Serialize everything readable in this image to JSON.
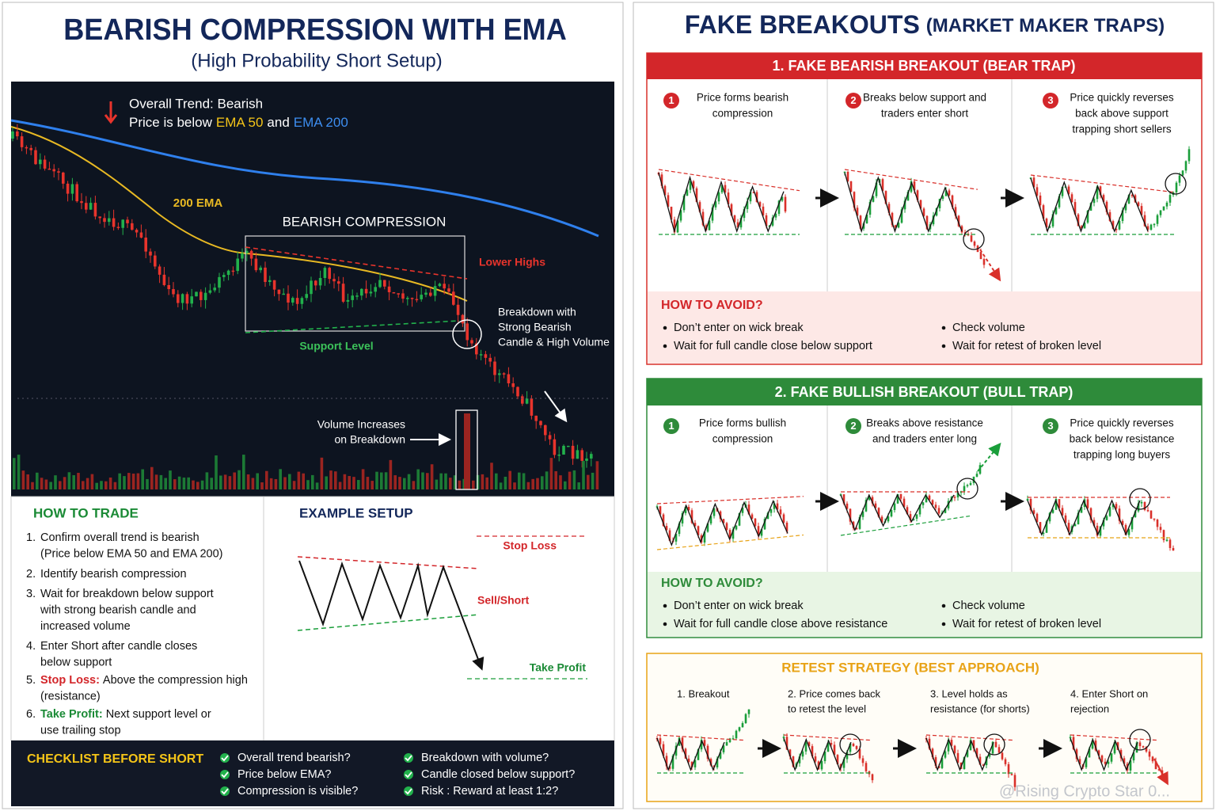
{
  "left": {
    "title": "BEARISH COMPRESSION WITH EMA",
    "subtitle": "(High Probability Short Setup)",
    "chart": {
      "trend": "Overall Trend: Bearish",
      "price_prefix": "Price is below",
      "ema50": "EMA 50",
      "conj": "and",
      "ema200": "EMA 200",
      "ema_label": "200 EMA",
      "zone": "BEARISH COMPRESSION",
      "lower_highs": "Lower Highs",
      "support": "Support Level",
      "breakdown": [
        "Breakdown with",
        "Strong Bearish",
        "Candle & High Volume"
      ],
      "volume": [
        "Volume Increases",
        "on Breakdown"
      ]
    },
    "how_to_trade": {
      "title": "HOW TO TRADE",
      "steps": [
        {
          "number": "1.",
          "lines": [
            "Confirm overall trend is bearish",
            "(Price below EMA 50 and EMA 200)"
          ]
        },
        {
          "number": "2.",
          "lines": [
            "Identify bearish compression"
          ]
        },
        {
          "number": "3.",
          "lines": [
            "Wait for breakdown below support",
            "with strong bearish candle and",
            "increased volume"
          ]
        },
        {
          "number": "4.",
          "lines": [
            "Enter Short after candle closes",
            "below support"
          ]
        },
        {
          "number": "5.",
          "lead": "Stop Loss:",
          "lines": [
            "Above the compression high",
            "(resistance)"
          ]
        },
        {
          "number": "6.",
          "lead": "Take Profit:",
          "lines": [
            "Next support level or",
            "use trailing stop"
          ]
        }
      ]
    },
    "example": {
      "title": "EXAMPLE SETUP",
      "stop_loss": "Stop Loss",
      "sell_short": "Sell/Short",
      "take_profit": "Take Profit"
    },
    "checklist": {
      "title": "CHECKLIST BEFORE SHORT",
      "items": [
        "Overall trend bearish?",
        "Price below EMA?",
        "Compression is visible?",
        "Breakdown with volume?",
        "Candle closed below support?",
        "Risk : Reward at least 1:2?"
      ]
    }
  },
  "right": {
    "title": "FAKE BREAKOUTS",
    "title_suffix": "(MARKET MAKER TRAPS)",
    "bear_trap": {
      "title": "1. FAKE BEARISH BREAKOUT (BEAR TRAP)",
      "steps": [
        {
          "number": "1",
          "lines": [
            "Price forms bearish",
            "compression"
          ]
        },
        {
          "number": "2",
          "lines": [
            "Breaks below support and",
            "traders enter short"
          ]
        },
        {
          "number": "3",
          "lines": [
            "Price quickly reverses",
            "back above support",
            "trapping short sellers"
          ]
        }
      ],
      "avoid_title": "HOW TO AVOID?",
      "avoid": [
        "Don’t enter on wick break",
        "Wait for full candle close below support",
        "Check volume",
        "Wait for retest of broken level"
      ]
    },
    "bull_trap": {
      "title": "2. FAKE BULLISH BREAKOUT (BULL TRAP)",
      "steps": [
        {
          "number": "1",
          "lines": [
            "Price forms bullish",
            "compression"
          ]
        },
        {
          "number": "2",
          "lines": [
            "Breaks above resistance",
            "and traders enter long"
          ]
        },
        {
          "number": "3",
          "lines": [
            "Price quickly reverses",
            "back below resistance",
            "trapping long buyers"
          ]
        }
      ],
      "avoid_title": "HOW TO AVOID?",
      "avoid": [
        "Don’t enter on wick break",
        "Wait for full candle close above resistance",
        "Check volume",
        "Wait for retest of broken level"
      ]
    },
    "retest": {
      "title": "RETEST STRATEGY (BEST APPROACH)",
      "steps": [
        [
          "1. Breakout"
        ],
        [
          "2. Price comes back",
          "to retest the level"
        ],
        [
          "3. Level holds as",
          "resistance (for shorts)"
        ],
        [
          "4. Enter Short on",
          "rejection"
        ]
      ]
    },
    "watermark": "@Rising Crypto Star 0..."
  }
}
